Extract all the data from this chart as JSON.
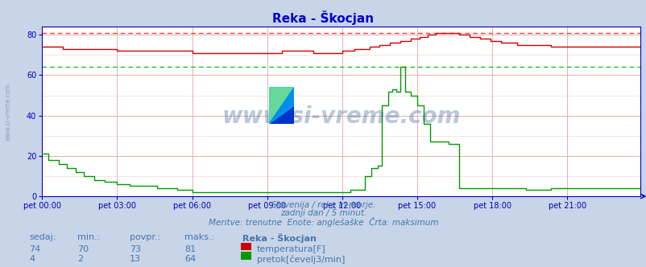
{
  "title": "Reka - Škocjan",
  "title_color": "#0000cc",
  "bg_color": "#c8d4e8",
  "plot_bg_color": "#ffffff",
  "grid_color": "#e8b0b0",
  "axis_color": "#0000bb",
  "x_labels": [
    "pet 00:00",
    "pet 03:00",
    "pet 06:00",
    "pet 09:00",
    "pet 12:00",
    "pet 15:00",
    "pet 18:00",
    "pet 21:00"
  ],
  "x_ticks": [
    0,
    36,
    72,
    108,
    144,
    180,
    216,
    252
  ],
  "total_points": 288,
  "ylim": [
    0,
    84
  ],
  "yticks": [
    0,
    20,
    40,
    60,
    80
  ],
  "temp_color": "#cc0000",
  "flow_color": "#009900",
  "max_temp_color": "#ff2222",
  "max_flow_color": "#00bb00",
  "watermark_text": "www.si-vreme.com",
  "watermark_color": "#1a4a8a",
  "watermark_alpha": 0.3,
  "footer_line1": "Slovenija / reke in morje.",
  "footer_line2": "zadnji dan / 5 minut.",
  "footer_line3": "Meritve: trenutne  Enote: anglešaške  Črta: maksimum",
  "footer_color": "#4477aa",
  "table_header": [
    "sedaj:",
    "min.:",
    "povpr.:",
    "maks.:",
    "Reka - Škocjan"
  ],
  "table_row1": [
    "74",
    "70",
    "73",
    "81",
    "temperatura[F]"
  ],
  "table_row2": [
    "4",
    "2",
    "13",
    "64",
    "pretok[čevelj3/min]"
  ],
  "table_color": "#4477aa",
  "temp_max_value": 81,
  "flow_max_value": 64,
  "left_label": "www.si-vreme.com"
}
